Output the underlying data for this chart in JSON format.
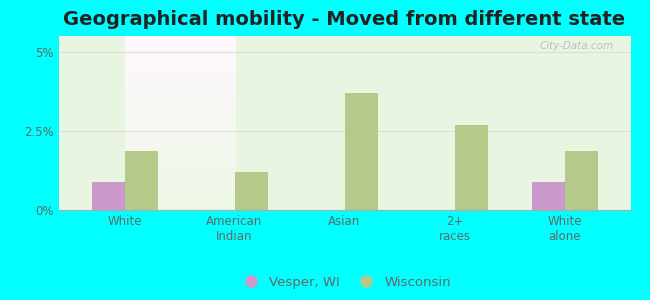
{
  "title": "Geographical mobility - Moved from different state",
  "categories": [
    "White",
    "American\nIndian",
    "Asian",
    "2+\nraces",
    "White\nalone"
  ],
  "vesper_values": [
    0.9,
    0.0,
    0.0,
    0.0,
    0.9
  ],
  "wisconsin_values": [
    1.85,
    1.2,
    3.7,
    2.7,
    1.85
  ],
  "ylim": [
    0,
    5.5
  ],
  "yticks": [
    0,
    2.5,
    5
  ],
  "ytick_labels": [
    "0%",
    "2.5%",
    "5%"
  ],
  "vesper_color": "#cc99cc",
  "wisconsin_color": "#b5c98a",
  "background_color": "#00ffff",
  "plot_bg_color": "#e8f5e0",
  "bar_width": 0.3,
  "title_fontsize": 14,
  "tick_fontsize": 8.5,
  "legend_fontsize": 9.5,
  "watermark": "City-Data.com",
  "grid_color": "#e8d8d8",
  "tick_color": "#666666"
}
